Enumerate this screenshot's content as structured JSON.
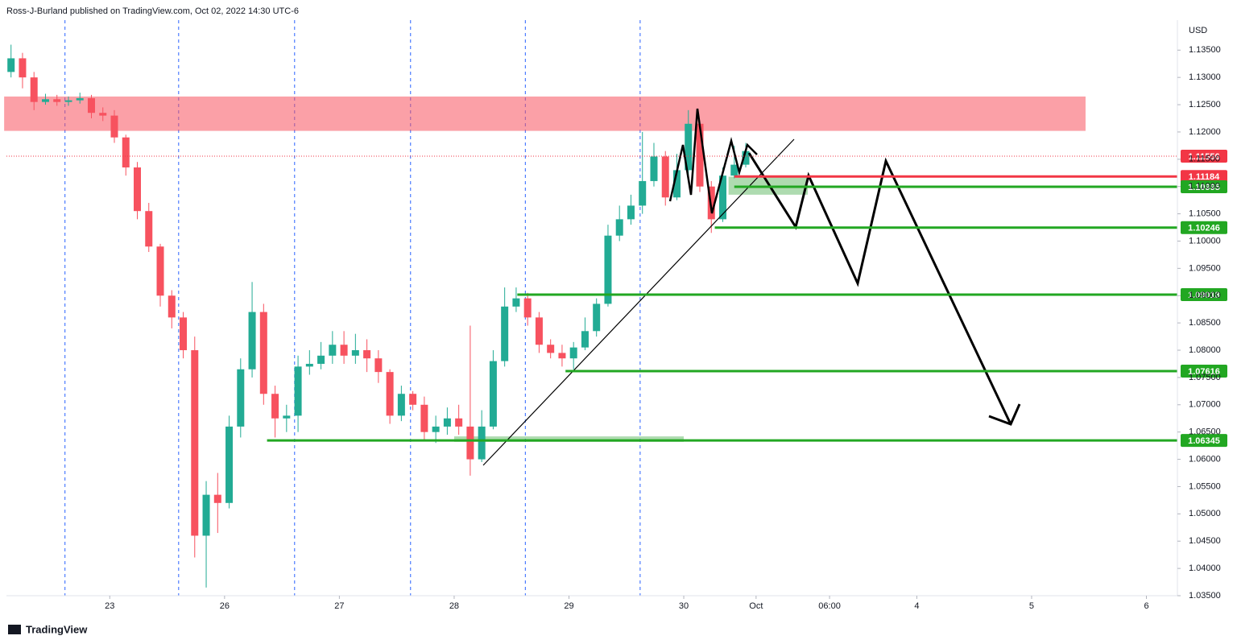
{
  "chart_data": {
    "type": "candlestick",
    "source": "Ross-J-Burland published on TradingView.com, Oct 02, 2022 14:30 UTC-6",
    "currency": "USD",
    "brand": "TradingView",
    "up_color": "#22ab94",
    "down_color": "#f7525f",
    "xlim": [
      -0.9,
      9.3
    ],
    "ylim": [
      1.035,
      1.1405
    ],
    "xticks": [
      {
        "value": 0,
        "label": "23"
      },
      {
        "value": 1,
        "label": "26"
      },
      {
        "value": 2,
        "label": "27"
      },
      {
        "value": 3,
        "label": "28"
      },
      {
        "value": 4,
        "label": "29"
      },
      {
        "value": 5,
        "label": "30"
      },
      {
        "value": 5.63,
        "label": "Oct"
      },
      {
        "value": 6.27,
        "label": "06:00"
      },
      {
        "value": 7.03,
        "label": "4"
      },
      {
        "value": 8.03,
        "label": "5"
      },
      {
        "value": 9.03,
        "label": "6"
      }
    ],
    "yticks": [
      {
        "value": 1.035,
        "label": "1.03500"
      },
      {
        "value": 1.04,
        "label": "1.04000"
      },
      {
        "value": 1.045,
        "label": "1.04500"
      },
      {
        "value": 1.05,
        "label": "1.05000"
      },
      {
        "value": 1.055,
        "label": "1.05500"
      },
      {
        "value": 1.06,
        "label": "1.06000"
      },
      {
        "value": 1.065,
        "label": "1.06500"
      },
      {
        "value": 1.07,
        "label": "1.07000"
      },
      {
        "value": 1.075,
        "label": "1.07500"
      },
      {
        "value": 1.08,
        "label": "1.08000"
      },
      {
        "value": 1.085,
        "label": "1.08500"
      },
      {
        "value": 1.09,
        "label": "1.09000"
      },
      {
        "value": 1.095,
        "label": "1.09500"
      },
      {
        "value": 1.1,
        "label": "1.10000"
      },
      {
        "value": 1.105,
        "label": "1.10500"
      },
      {
        "value": 1.11,
        "label": "1.11000"
      },
      {
        "value": 1.115,
        "label": "1.11500"
      },
      {
        "value": 1.12,
        "label": "1.12000"
      },
      {
        "value": 1.125,
        "label": "1.12500"
      },
      {
        "value": 1.13,
        "label": "1.13000"
      },
      {
        "value": 1.135,
        "label": "1.13500"
      }
    ],
    "session_lines": [
      -0.39,
      0.6,
      1.61,
      2.62,
      3.62,
      4.62
    ],
    "x": [
      -0.86,
      -0.76,
      -0.66,
      -0.56,
      -0.46,
      -0.36,
      -0.26,
      -0.16,
      -0.06,
      0.04,
      0.14,
      0.24,
      0.34,
      0.44,
      0.54,
      0.64,
      0.74,
      0.84,
      0.94,
      1.04,
      1.14,
      1.24,
      1.34,
      1.44,
      1.54,
      1.64,
      1.74,
      1.84,
      1.94,
      2.04,
      2.14,
      2.24,
      2.34,
      2.44,
      2.54,
      2.64,
      2.74,
      2.84,
      2.94,
      3.04,
      3.14,
      3.24,
      3.34,
      3.44,
      3.54,
      3.64,
      3.74,
      3.84,
      3.94,
      4.04,
      4.14,
      4.24,
      4.34,
      4.44,
      4.54,
      4.64,
      4.74,
      4.84,
      4.94,
      5.04,
      5.14,
      5.24,
      5.34,
      5.44,
      5.54
    ],
    "open": [
      1.131,
      1.1335,
      1.13,
      1.1255,
      1.126,
      1.1255,
      1.1258,
      1.1262,
      1.1235,
      1.123,
      1.119,
      1.1135,
      1.1055,
      1.099,
      1.09,
      1.086,
      1.08,
      1.046,
      1.0535,
      1.052,
      1.066,
      1.0765,
      1.087,
      1.072,
      1.0675,
      1.068,
      1.077,
      1.0775,
      1.079,
      1.081,
      1.079,
      1.08,
      1.0785,
      1.076,
      1.068,
      1.072,
      1.07,
      1.065,
      1.066,
      1.0675,
      1.066,
      1.06,
      1.066,
      1.078,
      1.088,
      1.0895,
      1.086,
      1.081,
      1.0795,
      1.0785,
      1.0805,
      1.0835,
      1.0885,
      1.101,
      1.104,
      1.1065,
      1.111,
      1.1155,
      1.108,
      1.113,
      1.1215,
      1.11,
      1.104,
      1.112,
      1.114
    ],
    "high": [
      1.136,
      1.1345,
      1.131,
      1.127,
      1.1268,
      1.1265,
      1.1272,
      1.1268,
      1.1245,
      1.124,
      1.1195,
      1.1145,
      1.107,
      1.0995,
      1.091,
      1.087,
      1.0825,
      1.056,
      1.0575,
      1.068,
      1.0785,
      1.0925,
      1.0885,
      1.0735,
      1.07,
      1.079,
      1.08,
      1.0815,
      1.0835,
      1.0835,
      1.083,
      1.082,
      1.08,
      1.0765,
      1.0735,
      1.0725,
      1.0715,
      1.068,
      1.0695,
      1.07,
      1.0845,
      1.069,
      1.08,
      1.0915,
      1.0915,
      1.0905,
      1.087,
      1.082,
      1.081,
      1.0815,
      1.086,
      1.0895,
      1.103,
      1.1065,
      1.1085,
      1.12,
      1.118,
      1.1165,
      1.116,
      1.124,
      1.122,
      1.111,
      1.1135,
      1.1175,
      1.118
    ],
    "low": [
      1.13,
      1.128,
      1.124,
      1.125,
      1.1248,
      1.1248,
      1.1252,
      1.1225,
      1.122,
      1.118,
      1.112,
      1.104,
      1.098,
      1.088,
      1.084,
      1.0785,
      1.042,
      1.0365,
      1.0465,
      1.051,
      1.064,
      1.075,
      1.07,
      1.064,
      1.065,
      1.065,
      1.0755,
      1.0765,
      1.0775,
      1.0775,
      1.0775,
      1.076,
      1.074,
      1.0665,
      1.067,
      1.069,
      1.0635,
      1.063,
      1.0645,
      1.0645,
      1.057,
      1.0595,
      1.0655,
      1.077,
      1.087,
      1.0845,
      1.0795,
      1.0785,
      1.077,
      1.0765,
      1.08,
      1.0825,
      1.088,
      1.1,
      1.103,
      1.105,
      1.11,
      1.1065,
      1.1075,
      1.112,
      1.109,
      1.1015,
      1.1035,
      1.1115,
      1.1135
    ],
    "close": [
      1.1335,
      1.13,
      1.1255,
      1.126,
      1.1255,
      1.1258,
      1.1262,
      1.1235,
      1.123,
      1.119,
      1.1135,
      1.1055,
      1.099,
      1.09,
      1.086,
      1.08,
      1.046,
      1.0535,
      1.052,
      1.066,
      1.0765,
      1.087,
      1.072,
      1.0675,
      1.068,
      1.077,
      1.0775,
      1.079,
      1.081,
      1.079,
      1.08,
      1.0785,
      1.076,
      1.068,
      1.072,
      1.07,
      1.065,
      1.066,
      1.0675,
      1.066,
      1.06,
      1.066,
      1.078,
      1.088,
      1.0895,
      1.086,
      1.081,
      1.0795,
      1.0785,
      1.0805,
      1.0835,
      1.0885,
      1.101,
      1.104,
      1.1065,
      1.111,
      1.1155,
      1.108,
      1.113,
      1.1215,
      1.11,
      1.104,
      1.112,
      1.114,
      1.1165
    ],
    "zones": [
      {
        "from": -0.92,
        "to": 8.5,
        "low": 1.1202,
        "high": 1.1265,
        "color": "rgba(247,82,95,0.55)"
      },
      {
        "from": 5.39,
        "to": 6.08,
        "low": 1.1085,
        "high": 1.1118,
        "color": "rgba(76,175,80,0.45)"
      },
      {
        "from": 3.0,
        "to": 5.0,
        "low": 1.0632,
        "high": 1.0642,
        "color": "rgba(76,175,80,0.45)"
      }
    ],
    "last_price": 1.11556,
    "last_color": "#f23645",
    "levels": [
      {
        "value": 1.11184,
        "from": 5.44,
        "color": "#f23645"
      },
      {
        "value": 1.10995,
        "from": 5.44,
        "color": "#22a722"
      },
      {
        "value": 1.10246,
        "from": 5.27,
        "color": "#22a722"
      },
      {
        "value": 1.09018,
        "from": 3.55,
        "color": "#22a722"
      },
      {
        "value": 1.07616,
        "from": 3.97,
        "color": "#22a722"
      },
      {
        "value": 1.06345,
        "from": 1.37,
        "color": "#22a722"
      }
    ]
  }
}
